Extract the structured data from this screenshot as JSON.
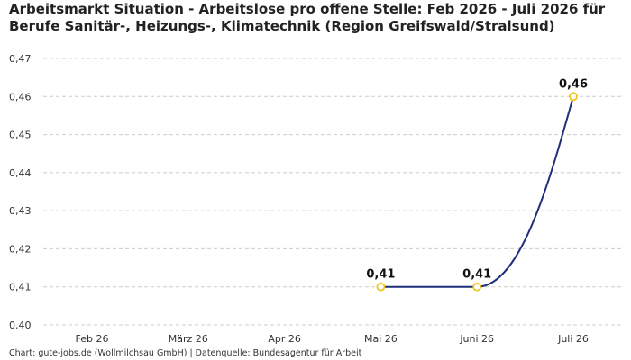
{
  "title_lines": [
    "Arbeitsmarkt Situation - Arbeitslose pro offene Stelle: Feb 2026 - Juli 2026 für",
    "Berufe Sanitär-, Heizungs-, Klimatechnik (Region Greifswald/Stralsund)"
  ],
  "source": "Chart: gute-jobs.de (Wollmilchsau GmbH) | Datenquelle: Bundesagentur für Arbeit",
  "colors": {
    "line": "#1f2f7a",
    "marker_stroke": "#f2c418",
    "marker_fill": "#ffffff",
    "grid": "#cccccc",
    "axis_text": "#333333",
    "label_text": "#111111"
  },
  "chart_data": {
    "type": "line",
    "title": "Arbeitsmarkt Situation - Arbeitslose pro offene Stelle: Feb 2026 - Juli 2026 für Berufe Sanitär-, Heizungs-, Klimatechnik (Region Greifswald/Stralsund)",
    "xlabel": "",
    "ylabel": "",
    "categories": [
      "Feb 26",
      "März 26",
      "Apr 26",
      "Mai 26",
      "Juni 26",
      "Juli 26"
    ],
    "series": [
      {
        "values": [
          null,
          null,
          null,
          0.41,
          0.41,
          0.46
        ],
        "labels": [
          null,
          null,
          null,
          "0,41",
          "0,41",
          "0,46"
        ]
      }
    ],
    "ylim": [
      0.4,
      0.47
    ],
    "yticks": [
      0.4,
      0.41,
      0.42,
      0.43,
      0.44,
      0.45,
      0.46,
      0.47
    ],
    "ytick_labels": [
      "0,40",
      "0,41",
      "0,42",
      "0,43",
      "0,44",
      "0,45",
      "0,46",
      "0,47"
    ],
    "grid": true,
    "grid_style": "dashed-horizontal",
    "legend": "none",
    "curve": "smooth"
  }
}
